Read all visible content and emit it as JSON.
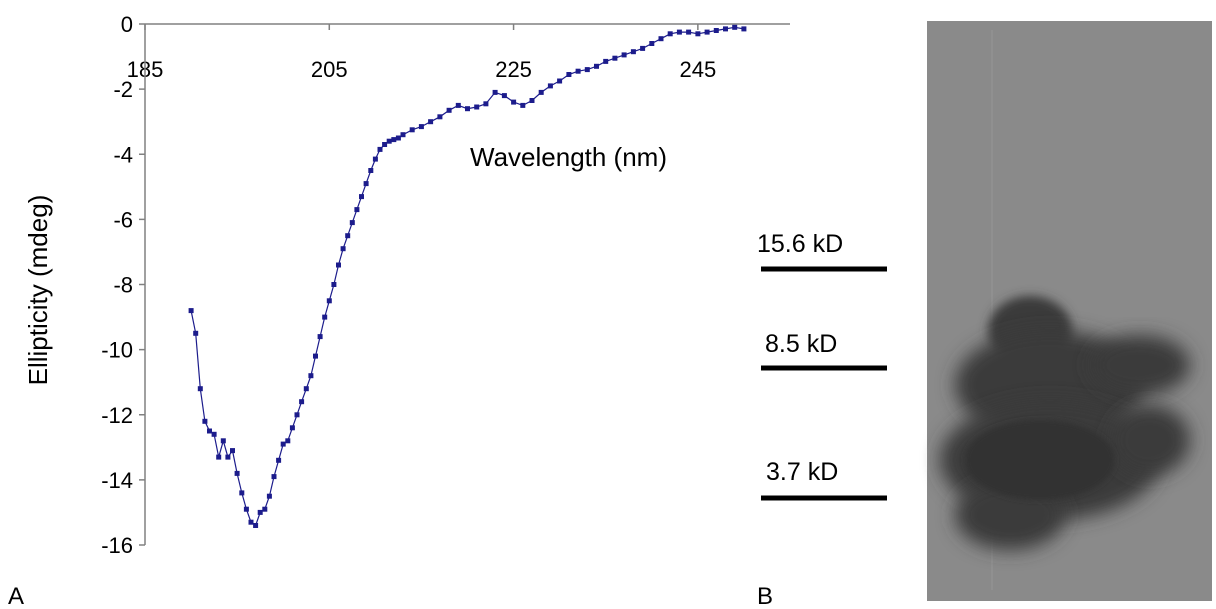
{
  "panels": {
    "a_label": "A",
    "b_label": "B"
  },
  "chart_data": {
    "type": "line",
    "title": "",
    "xlabel": "Wavelength (nm)",
    "ylabel": "Ellipticity (mdeg)",
    "xlim": [
      185,
      255
    ],
    "ylim": [
      -16,
      0
    ],
    "x_ticks": [
      185,
      205,
      225,
      245
    ],
    "y_ticks": [
      0,
      -2,
      -4,
      -6,
      -8,
      -10,
      -12,
      -14,
      -16
    ],
    "grid": false,
    "legend": "none",
    "series_color": "#1c1c8c",
    "series": [
      {
        "x": [
          190,
          190.5,
          191,
          191.5,
          192,
          192.5,
          193,
          193.5,
          194,
          194.5,
          195,
          195.5,
          196,
          196.5,
          197,
          197.5,
          198,
          198.5,
          199,
          199.5,
          200,
          200.5,
          201,
          201.5,
          202,
          202.5,
          203,
          203.5,
          204,
          204.5,
          205,
          205.5,
          206,
          206.5,
          207,
          207.5,
          208,
          208.5,
          209,
          209.5,
          210,
          210.5,
          211,
          211.5,
          212,
          212.5,
          213,
          214,
          215,
          216,
          217,
          218,
          219,
          220,
          221,
          222,
          223,
          224,
          225,
          226,
          227,
          228,
          229,
          230,
          231,
          232,
          233,
          234,
          235,
          236,
          237,
          238,
          239,
          240,
          241,
          242,
          243,
          244,
          245,
          246,
          247,
          248,
          249,
          250
        ],
        "y": [
          -8.8,
          -9.5,
          -11.2,
          -12.2,
          -12.5,
          -12.6,
          -13.3,
          -12.8,
          -13.3,
          -13.1,
          -13.8,
          -14.4,
          -14.9,
          -15.3,
          -15.4,
          -15.0,
          -14.9,
          -14.5,
          -13.9,
          -13.4,
          -12.9,
          -12.8,
          -12.4,
          -12.0,
          -11.6,
          -11.2,
          -10.8,
          -10.2,
          -9.6,
          -9.0,
          -8.5,
          -8.0,
          -7.4,
          -6.9,
          -6.5,
          -6.1,
          -5.7,
          -5.3,
          -4.9,
          -4.5,
          -4.15,
          -3.85,
          -3.7,
          -3.6,
          -3.55,
          -3.5,
          -3.4,
          -3.25,
          -3.15,
          -3.0,
          -2.85,
          -2.65,
          -2.5,
          -2.6,
          -2.55,
          -2.45,
          -2.1,
          -2.2,
          -2.4,
          -2.5,
          -2.35,
          -2.1,
          -1.9,
          -1.75,
          -1.55,
          -1.45,
          -1.4,
          -1.3,
          -1.15,
          -1.05,
          -0.95,
          -0.85,
          -0.75,
          -0.6,
          -0.45,
          -0.3,
          -0.25,
          -0.25,
          -0.3,
          -0.25,
          -0.2,
          -0.15,
          -0.1,
          -0.15
        ]
      }
    ]
  },
  "gel": {
    "markers": [
      {
        "label": "15.6 kD"
      },
      {
        "label": "8.5 kD"
      },
      {
        "label": "3.7 kD"
      }
    ]
  }
}
